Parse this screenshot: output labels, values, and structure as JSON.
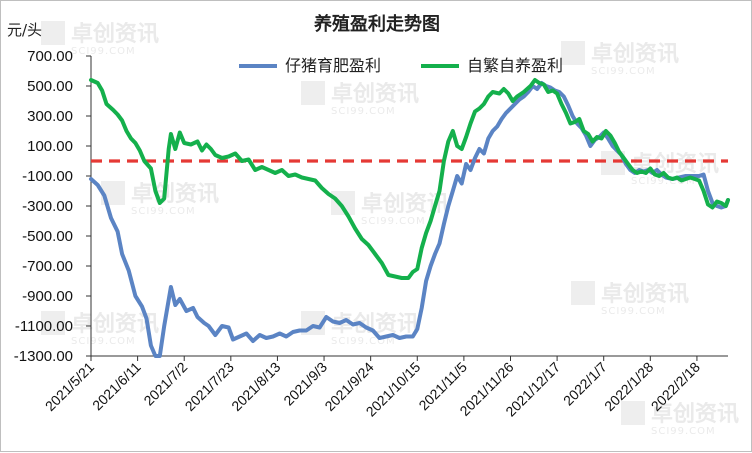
{
  "chart_data": {
    "type": "line",
    "title": "养殖盈利走势图",
    "ylabel": "元/头",
    "ylim": [
      -1300,
      700
    ],
    "yticks": [
      "700.00",
      "500.00",
      "300.00",
      "100.00",
      "-100.00",
      "-300.00",
      "-500.00",
      "-700.00",
      "-900.00",
      "-1100.00",
      "-1300.00"
    ],
    "xticks": [
      "2021/5/21",
      "2021/6/11",
      "2021/7/2",
      "2021/7/23",
      "2021/8/13",
      "2021/9/3",
      "2021/9/24",
      "2021/10/15",
      "2021/11/5",
      "2021/11/26",
      "2021/12/17",
      "2022/1/7",
      "2022/1/28",
      "2022/2/18"
    ],
    "reference_line": {
      "value": 0,
      "color": "#e53935",
      "style": "dashed"
    },
    "legend_position": "top",
    "watermark": "卓创资讯",
    "watermark_sub": "SCI99.COM",
    "series": [
      {
        "name": "仔猪育肥盈利",
        "color": "#5b84c4",
        "points": [
          [
            0,
            -120
          ],
          [
            3,
            -160
          ],
          [
            6,
            -230
          ],
          [
            9,
            -380
          ],
          [
            12,
            -470
          ],
          [
            14,
            -620
          ],
          [
            17,
            -730
          ],
          [
            20,
            -900
          ],
          [
            23,
            -970
          ],
          [
            25,
            -1050
          ],
          [
            27,
            -1230
          ],
          [
            29,
            -1300
          ],
          [
            31,
            -1300
          ],
          [
            33,
            -1100
          ],
          [
            36,
            -840
          ],
          [
            38,
            -960
          ],
          [
            40,
            -920
          ],
          [
            43,
            -1000
          ],
          [
            46,
            -980
          ],
          [
            48,
            -1040
          ],
          [
            51,
            -1080
          ],
          [
            53,
            -1100
          ],
          [
            56,
            -1160
          ],
          [
            59,
            -1100
          ],
          [
            62,
            -1110
          ],
          [
            64,
            -1190
          ],
          [
            67,
            -1170
          ],
          [
            70,
            -1150
          ],
          [
            73,
            -1200
          ],
          [
            76,
            -1160
          ],
          [
            79,
            -1180
          ],
          [
            82,
            -1170
          ],
          [
            85,
            -1150
          ],
          [
            88,
            -1170
          ],
          [
            91,
            -1140
          ],
          [
            94,
            -1130
          ],
          [
            97,
            -1130
          ],
          [
            100,
            -1100
          ],
          [
            103,
            -1110
          ],
          [
            106,
            -1040
          ],
          [
            109,
            -1070
          ],
          [
            112,
            -1080
          ],
          [
            115,
            -1060
          ],
          [
            118,
            -1090
          ],
          [
            121,
            -1080
          ],
          [
            124,
            -1110
          ],
          [
            127,
            -1130
          ],
          [
            130,
            -1180
          ],
          [
            133,
            -1170
          ],
          [
            136,
            -1160
          ],
          [
            139,
            -1180
          ],
          [
            142,
            -1170
          ],
          [
            145,
            -1170
          ],
          [
            147,
            -1120
          ],
          [
            149,
            -980
          ],
          [
            151,
            -800
          ],
          [
            153,
            -700
          ],
          [
            155,
            -620
          ],
          [
            157,
            -550
          ],
          [
            159,
            -420
          ],
          [
            161,
            -300
          ],
          [
            163,
            -200
          ],
          [
            165,
            -100
          ],
          [
            167,
            -150
          ],
          [
            169,
            -20
          ],
          [
            171,
            -60
          ],
          [
            173,
            20
          ],
          [
            175,
            80
          ],
          [
            177,
            50
          ],
          [
            179,
            150
          ],
          [
            181,
            200
          ],
          [
            183,
            230
          ],
          [
            185,
            280
          ],
          [
            187,
            320
          ],
          [
            189,
            350
          ],
          [
            191,
            380
          ],
          [
            193,
            410
          ],
          [
            195,
            430
          ],
          [
            197,
            460
          ],
          [
            199,
            500
          ],
          [
            201,
            480
          ],
          [
            203,
            520
          ],
          [
            205,
            500
          ],
          [
            207,
            490
          ],
          [
            209,
            470
          ],
          [
            211,
            460
          ],
          [
            213,
            430
          ],
          [
            215,
            370
          ],
          [
            217,
            300
          ],
          [
            219,
            250
          ],
          [
            221,
            220
          ],
          [
            223,
            170
          ],
          [
            225,
            100
          ],
          [
            227,
            140
          ],
          [
            229,
            160
          ],
          [
            231,
            190
          ],
          [
            233,
            150
          ],
          [
            235,
            100
          ],
          [
            237,
            70
          ],
          [
            239,
            40
          ],
          [
            241,
            -20
          ],
          [
            243,
            -60
          ],
          [
            245,
            -80
          ],
          [
            247,
            -60
          ],
          [
            249,
            -70
          ],
          [
            251,
            -60
          ],
          [
            253,
            -80
          ],
          [
            255,
            -60
          ],
          [
            257,
            -90
          ],
          [
            259,
            -110
          ],
          [
            262,
            -120
          ],
          [
            265,
            -110
          ],
          [
            268,
            -100
          ],
          [
            271,
            -100
          ],
          [
            274,
            -100
          ],
          [
            276,
            -90
          ],
          [
            278,
            -200
          ],
          [
            280,
            -280
          ],
          [
            282,
            -300
          ],
          [
            284,
            -310
          ],
          [
            286,
            -300
          ],
          [
            287,
            -260
          ]
        ]
      },
      {
        "name": "自繁自养盈利",
        "color": "#14b04c",
        "points": [
          [
            0,
            540
          ],
          [
            3,
            520
          ],
          [
            5,
            470
          ],
          [
            7,
            380
          ],
          [
            10,
            340
          ],
          [
            12,
            310
          ],
          [
            14,
            270
          ],
          [
            16,
            200
          ],
          [
            18,
            150
          ],
          [
            20,
            120
          ],
          [
            22,
            70
          ],
          [
            24,
            0
          ],
          [
            27,
            -50
          ],
          [
            29,
            -200
          ],
          [
            31,
            -280
          ],
          [
            33,
            -250
          ],
          [
            35,
            80
          ],
          [
            36,
            180
          ],
          [
            38,
            80
          ],
          [
            40,
            190
          ],
          [
            42,
            120
          ],
          [
            45,
            110
          ],
          [
            48,
            130
          ],
          [
            50,
            70
          ],
          [
            52,
            110
          ],
          [
            54,
            80
          ],
          [
            56,
            40
          ],
          [
            59,
            20
          ],
          [
            62,
            30
          ],
          [
            65,
            50
          ],
          [
            68,
            0
          ],
          [
            71,
            10
          ],
          [
            74,
            -60
          ],
          [
            77,
            -40
          ],
          [
            80,
            -60
          ],
          [
            83,
            -80
          ],
          [
            86,
            -60
          ],
          [
            89,
            -100
          ],
          [
            92,
            -90
          ],
          [
            95,
            -110
          ],
          [
            98,
            -120
          ],
          [
            101,
            -130
          ],
          [
            104,
            -180
          ],
          [
            107,
            -220
          ],
          [
            110,
            -250
          ],
          [
            113,
            -300
          ],
          [
            116,
            -370
          ],
          [
            119,
            -450
          ],
          [
            122,
            -520
          ],
          [
            125,
            -560
          ],
          [
            128,
            -620
          ],
          [
            131,
            -680
          ],
          [
            134,
            -760
          ],
          [
            137,
            -770
          ],
          [
            140,
            -780
          ],
          [
            143,
            -780
          ],
          [
            145,
            -740
          ],
          [
            147,
            -720
          ],
          [
            149,
            -580
          ],
          [
            151,
            -480
          ],
          [
            153,
            -400
          ],
          [
            155,
            -300
          ],
          [
            157,
            -200
          ],
          [
            159,
            0
          ],
          [
            161,
            130
          ],
          [
            163,
            200
          ],
          [
            165,
            100
          ],
          [
            167,
            80
          ],
          [
            169,
            160
          ],
          [
            171,
            250
          ],
          [
            173,
            330
          ],
          [
            175,
            350
          ],
          [
            177,
            380
          ],
          [
            179,
            430
          ],
          [
            181,
            460
          ],
          [
            184,
            450
          ],
          [
            186,
            480
          ],
          [
            188,
            450
          ],
          [
            190,
            400
          ],
          [
            192,
            430
          ],
          [
            195,
            460
          ],
          [
            198,
            500
          ],
          [
            200,
            540
          ],
          [
            202,
            520
          ],
          [
            204,
            510
          ],
          [
            206,
            460
          ],
          [
            208,
            470
          ],
          [
            210,
            450
          ],
          [
            212,
            380
          ],
          [
            214,
            320
          ],
          [
            216,
            250
          ],
          [
            218,
            260
          ],
          [
            220,
            280
          ],
          [
            222,
            200
          ],
          [
            224,
            180
          ],
          [
            226,
            130
          ],
          [
            228,
            160
          ],
          [
            230,
            150
          ],
          [
            232,
            200
          ],
          [
            234,
            170
          ],
          [
            236,
            120
          ],
          [
            238,
            60
          ],
          [
            240,
            20
          ],
          [
            242,
            -20
          ],
          [
            244,
            -60
          ],
          [
            246,
            -80
          ],
          [
            248,
            -70
          ],
          [
            250,
            -80
          ],
          [
            252,
            -50
          ],
          [
            254,
            -90
          ],
          [
            256,
            -100
          ],
          [
            258,
            -80
          ],
          [
            260,
            -110
          ],
          [
            262,
            -120
          ],
          [
            264,
            -110
          ],
          [
            266,
            -130
          ],
          [
            268,
            -120
          ],
          [
            270,
            -110
          ],
          [
            272,
            -120
          ],
          [
            274,
            -130
          ],
          [
            276,
            -200
          ],
          [
            278,
            -290
          ],
          [
            280,
            -310
          ],
          [
            282,
            -270
          ],
          [
            284,
            -280
          ],
          [
            286,
            -300
          ],
          [
            287,
            -260
          ]
        ]
      }
    ]
  }
}
